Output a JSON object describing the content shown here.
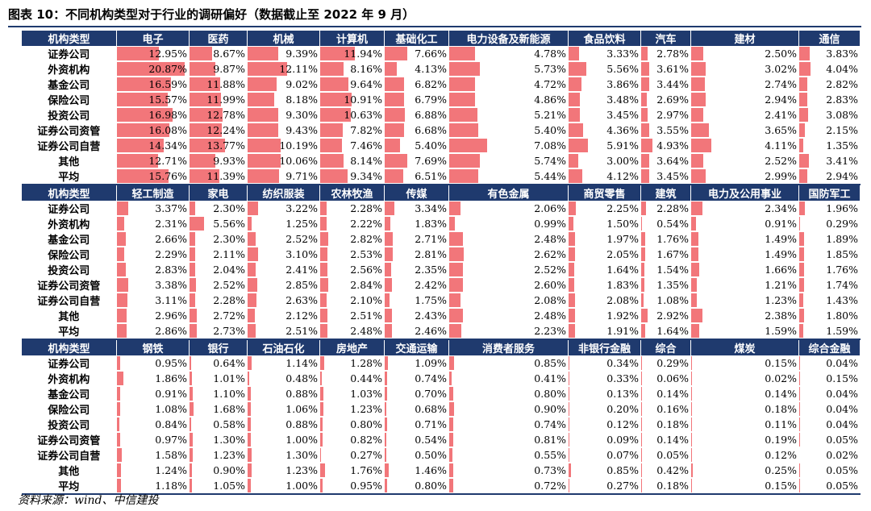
{
  "page": {
    "title": "图表 10：不同机构类型对于行业的调研偏好（数据截止至 2022 年 9 月）",
    "source": "资料来源：wind、中信建投"
  },
  "colors": {
    "header_bg": "#1f3a6e",
    "header_text": "#ffffff",
    "bar": "#f2767a"
  },
  "chart_data": [
    {
      "type": "table",
      "corner": "机构类型",
      "columns": [
        "电子",
        "医药",
        "机械",
        "计算机",
        "基础化工",
        "电力设备及新能源",
        "食品饮料",
        "汽车",
        "建材",
        "通信"
      ],
      "rows": [
        {
          "label": "证券公司",
          "values": [
            "12.95%",
            "8.67%",
            "9.39%",
            "11.94%",
            "7.66%",
            "4.78%",
            "3.33%",
            "2.78%",
            "2.50%",
            "3.83%"
          ]
        },
        {
          "label": "外资机构",
          "values": [
            "20.87%",
            "9.87%",
            "12.11%",
            "8.16%",
            "4.13%",
            "5.73%",
            "5.56%",
            "3.61%",
            "3.02%",
            "4.04%"
          ]
        },
        {
          "label": "基金公司",
          "values": [
            "16.59%",
            "11.88%",
            "9.02%",
            "9.64%",
            "6.82%",
            "4.72%",
            "3.86%",
            "3.44%",
            "2.74%",
            "2.82%"
          ]
        },
        {
          "label": "保险公司",
          "values": [
            "15.57%",
            "11.99%",
            "8.18%",
            "10.91%",
            "6.79%",
            "4.86%",
            "3.48%",
            "2.69%",
            "2.94%",
            "2.83%"
          ]
        },
        {
          "label": "投资公司",
          "values": [
            "16.98%",
            "12.78%",
            "9.30%",
            "10.63%",
            "6.88%",
            "5.21%",
            "3.45%",
            "2.97%",
            "2.41%",
            "3.08%"
          ]
        },
        {
          "label": "证券公司资管",
          "values": [
            "16.08%",
            "12.24%",
            "9.43%",
            "7.82%",
            "6.68%",
            "5.40%",
            "4.36%",
            "3.55%",
            "3.65%",
            "2.15%"
          ]
        },
        {
          "label": "证券公司自营",
          "values": [
            "14.34%",
            "13.77%",
            "10.19%",
            "7.46%",
            "5.40%",
            "7.08%",
            "5.91%",
            "4.93%",
            "4.11%",
            "1.35%"
          ]
        },
        {
          "label": "其他",
          "values": [
            "12.71%",
            "9.93%",
            "10.06%",
            "8.14%",
            "7.69%",
            "5.74%",
            "3.00%",
            "3.64%",
            "2.52%",
            "3.41%"
          ]
        },
        {
          "label": "平均",
          "values": [
            "15.76%",
            "11.39%",
            "9.71%",
            "9.34%",
            "6.51%",
            "5.44%",
            "4.12%",
            "3.45%",
            "2.99%",
            "2.94%"
          ]
        }
      ]
    },
    {
      "type": "table",
      "corner": "机构类型",
      "columns": [
        "轻工制造",
        "家电",
        "纺织服装",
        "农林牧渔",
        "传媒",
        "有色金属",
        "商贸零售",
        "建筑",
        "电力及公用事业",
        "国防军工"
      ],
      "rows": [
        {
          "label": "证券公司",
          "values": [
            "3.37%",
            "2.30%",
            "3.22%",
            "2.28%",
            "3.34%",
            "2.06%",
            "2.25%",
            "2.28%",
            "2.34%",
            "1.96%"
          ]
        },
        {
          "label": "外资机构",
          "values": [
            "2.31%",
            "5.56%",
            "1.25%",
            "2.22%",
            "1.83%",
            "0.99%",
            "1.50%",
            "0.54%",
            "0.91%",
            "0.29%"
          ]
        },
        {
          "label": "基金公司",
          "values": [
            "2.66%",
            "2.30%",
            "2.52%",
            "2.82%",
            "2.71%",
            "2.48%",
            "1.97%",
            "1.76%",
            "1.49%",
            "1.89%"
          ]
        },
        {
          "label": "保险公司",
          "values": [
            "2.29%",
            "2.11%",
            "3.10%",
            "2.53%",
            "2.81%",
            "2.62%",
            "2.05%",
            "1.67%",
            "1.49%",
            "1.85%"
          ]
        },
        {
          "label": "投资公司",
          "values": [
            "2.83%",
            "2.04%",
            "2.41%",
            "2.56%",
            "2.35%",
            "2.52%",
            "1.64%",
            "1.54%",
            "1.66%",
            "1.76%"
          ]
        },
        {
          "label": "证券公司资管",
          "values": [
            "3.38%",
            "2.52%",
            "2.85%",
            "2.84%",
            "2.42%",
            "2.60%",
            "1.83%",
            "1.35%",
            "1.21%",
            "1.74%"
          ]
        },
        {
          "label": "证券公司自营",
          "values": [
            "3.11%",
            "2.28%",
            "2.63%",
            "2.10%",
            "1.75%",
            "2.08%",
            "2.08%",
            "1.08%",
            "1.23%",
            "1.43%"
          ]
        },
        {
          "label": "其他",
          "values": [
            "2.96%",
            "2.72%",
            "2.12%",
            "2.51%",
            "2.43%",
            "2.48%",
            "1.92%",
            "2.92%",
            "2.38%",
            "1.80%"
          ]
        },
        {
          "label": "平均",
          "values": [
            "2.86%",
            "2.73%",
            "2.51%",
            "2.48%",
            "2.46%",
            "2.23%",
            "1.91%",
            "1.64%",
            "1.59%",
            "1.59%"
          ]
        }
      ]
    },
    {
      "type": "table",
      "corner": "机构类型",
      "columns": [
        "钢铁",
        "银行",
        "石油石化",
        "房地产",
        "交通运输",
        "消费者服务",
        "非银行金融",
        "综合",
        "煤炭",
        "综合金融"
      ],
      "rows": [
        {
          "label": "证券公司",
          "values": [
            "0.95%",
            "0.64%",
            "1.14%",
            "1.28%",
            "1.09%",
            "0.85%",
            "0.34%",
            "0.29%",
            "0.15%",
            "0.04%"
          ]
        },
        {
          "label": "外资机构",
          "values": [
            "1.86%",
            "1.01%",
            "0.48%",
            "0.44%",
            "0.74%",
            "0.41%",
            "0.33%",
            "0.06%",
            "0.02%",
            "0.15%"
          ]
        },
        {
          "label": "基金公司",
          "values": [
            "0.91%",
            "1.10%",
            "0.88%",
            "1.03%",
            "0.70%",
            "0.80%",
            "0.13%",
            "0.14%",
            "0.14%",
            "0.04%"
          ]
        },
        {
          "label": "保险公司",
          "values": [
            "1.08%",
            "1.68%",
            "1.06%",
            "1.23%",
            "0.68%",
            "0.90%",
            "0.20%",
            "0.16%",
            "0.18%",
            "0.04%"
          ]
        },
        {
          "label": "投资公司",
          "values": [
            "0.84%",
            "0.58%",
            "0.88%",
            "0.80%",
            "0.71%",
            "0.74%",
            "0.12%",
            "0.18%",
            "0.11%",
            "0.04%"
          ]
        },
        {
          "label": "证券公司资管",
          "values": [
            "0.97%",
            "1.30%",
            "1.00%",
            "0.82%",
            "0.54%",
            "0.81%",
            "0.09%",
            "0.14%",
            "0.19%",
            "0.05%"
          ]
        },
        {
          "label": "证券公司自营",
          "values": [
            "1.58%",
            "1.23%",
            "1.30%",
            "0.27%",
            "0.50%",
            "0.55%",
            "0.07%",
            "0.05%",
            "0.12%",
            "0.02%"
          ]
        },
        {
          "label": "其他",
          "values": [
            "1.24%",
            "0.90%",
            "1.23%",
            "1.76%",
            "1.46%",
            "0.73%",
            "0.85%",
            "0.42%",
            "0.25%",
            "0.05%"
          ]
        },
        {
          "label": "平均",
          "values": [
            "1.18%",
            "1.05%",
            "1.00%",
            "0.95%",
            "0.80%",
            "0.72%",
            "0.27%",
            "0.18%",
            "0.15%",
            "0.05%"
          ]
        }
      ]
    }
  ]
}
